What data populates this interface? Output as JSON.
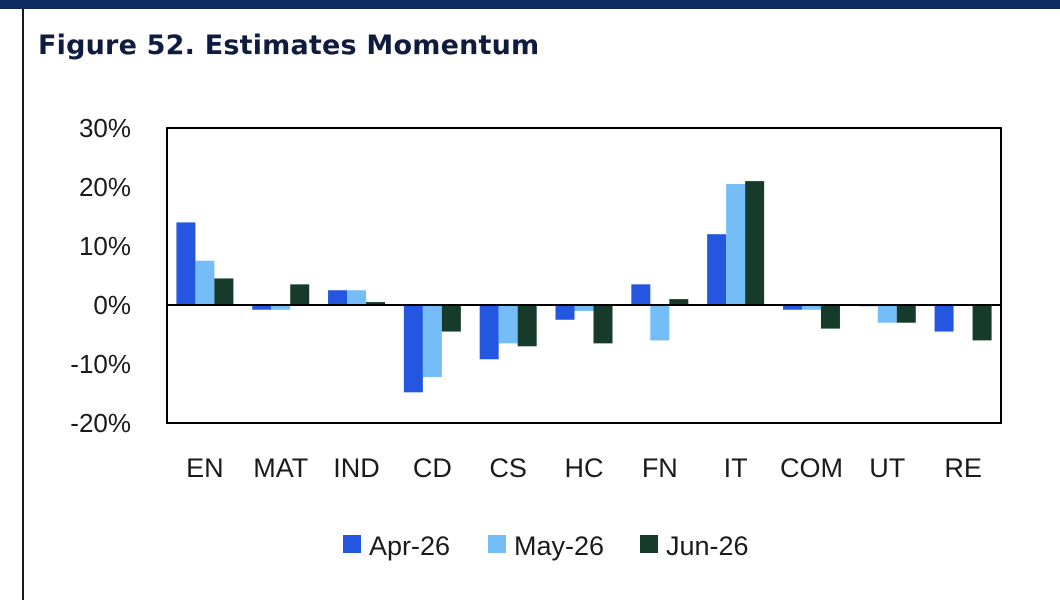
{
  "title": "Figure 52. Estimates Momentum",
  "colors": {
    "header_bar": "#0e2a5e",
    "title_text": "#0f1c3f"
  },
  "chart_data": {
    "type": "bar",
    "title": "",
    "xlabel": "",
    "ylabel": "",
    "ylim": [
      -20,
      30
    ],
    "y_ticks": [
      30,
      20,
      10,
      0,
      -10,
      -20
    ],
    "y_tick_labels": [
      "30%",
      "20%",
      "10%",
      "0%",
      "-10%",
      "-20%"
    ],
    "grid": false,
    "legend_position": "bottom",
    "categories": [
      "EN",
      "MAT",
      "IND",
      "CD",
      "CS",
      "HC",
      "FN",
      "IT",
      "COM",
      "UT",
      "RE"
    ],
    "series": [
      {
        "name": "Apr-26",
        "color": "#2456e0",
        "values": [
          14,
          -0.8,
          2.5,
          -14.8,
          -9.2,
          -2.5,
          3.5,
          12,
          -0.8,
          -0.2,
          -4.5
        ]
      },
      {
        "name": "May-26",
        "color": "#74bdf7",
        "values": [
          7.5,
          -0.8,
          2.5,
          -12.2,
          -6.5,
          -1,
          -6,
          20.5,
          -0.8,
          -3,
          0
        ]
      },
      {
        "name": "Jun-26",
        "color": "#163b2a",
        "values": [
          4.5,
          3.5,
          0.5,
          -4.5,
          -7,
          -6.5,
          1,
          21,
          -4,
          -3,
          -6
        ]
      }
    ]
  }
}
